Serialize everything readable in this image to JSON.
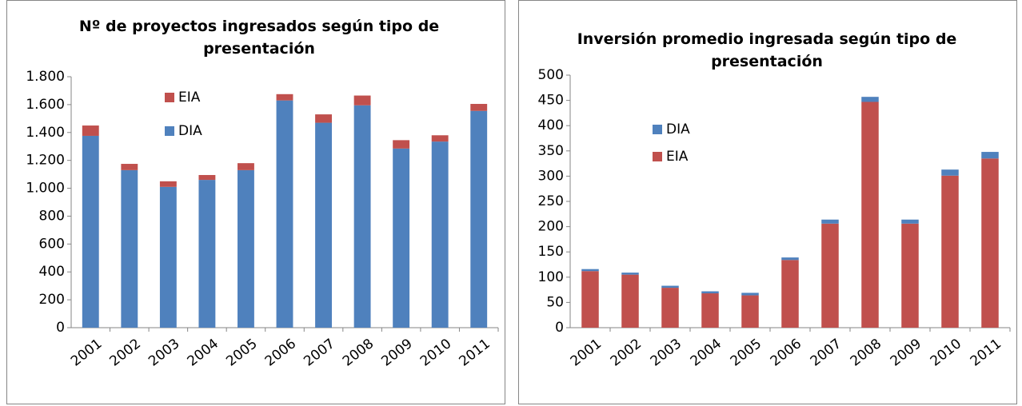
{
  "chart_data": [
    {
      "type": "bar",
      "stacked": true,
      "title": "Nº de proyectos ingresados según tipo de presentación",
      "categories": [
        "2001",
        "2002",
        "2003",
        "2004",
        "2005",
        "2006",
        "2007",
        "2008",
        "2009",
        "2010",
        "2011"
      ],
      "series": [
        {
          "name": "DIA",
          "color": "#4f81bd",
          "values": [
            1376,
            1130,
            1010,
            1060,
            1130,
            1630,
            1470,
            1595,
            1285,
            1335,
            1555
          ]
        },
        {
          "name": "EIA",
          "color": "#c0504d",
          "values": [
            74,
            45,
            40,
            35,
            50,
            45,
            60,
            70,
            60,
            45,
            50
          ]
        }
      ],
      "ylim": [
        0,
        1800
      ],
      "yticks": [
        0,
        200,
        400,
        600,
        800,
        {
          "value": 1000,
          "label": "1.000"
        },
        {
          "value": 1200,
          "label": "1.200"
        },
        {
          "value": 1400,
          "label": "1.400"
        },
        {
          "value": 1600,
          "label": "1.600"
        },
        {
          "value": 1800,
          "label": "1.800"
        }
      ],
      "grid": false
    },
    {
      "type": "bar",
      "stacked": true,
      "title": "Inversión promedio ingresada según tipo de presentación",
      "categories": [
        "2001",
        "2002",
        "2003",
        "2004",
        "2005",
        "2006",
        "2007",
        "2008",
        "2009",
        "2010",
        "2011"
      ],
      "series": [
        {
          "name": "EIA",
          "color": "#c0504d",
          "values": [
            112,
            105,
            79,
            68,
            64,
            134,
            206,
            447,
            206,
            301,
            335
          ]
        },
        {
          "name": "DIA",
          "color": "#4f81bd",
          "values": [
            4,
            4,
            4,
            4,
            5,
            5,
            8,
            10,
            8,
            12,
            13
          ]
        }
      ],
      "ylim": [
        0,
        500
      ],
      "yticks": [
        0,
        50,
        100,
        150,
        200,
        250,
        300,
        350,
        400,
        450,
        500
      ],
      "grid": false
    }
  ]
}
